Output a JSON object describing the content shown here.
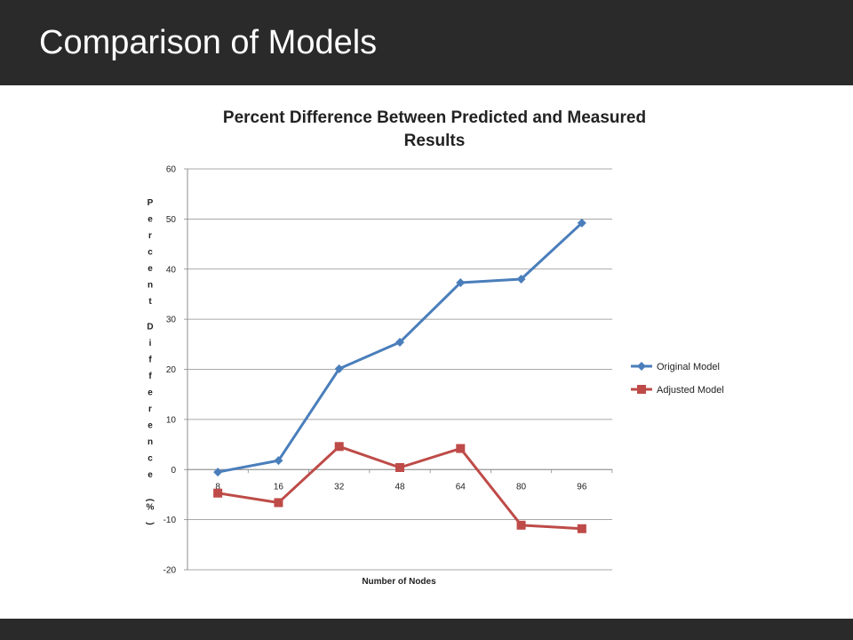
{
  "slide": {
    "title": "Comparison of Models"
  },
  "colors": {
    "header_bg": "#2a2a2a",
    "footer_bg": "#2a2a2a",
    "original": "#4a7ebb",
    "adjusted": "#be4b48"
  },
  "chart_data": {
    "type": "line",
    "title_lines": [
      "Percent Difference Between Predicted and Measured",
      "Results"
    ],
    "xlabel": "Number of Nodes",
    "ylabel": "Percent Difference (%)",
    "categories": [
      "8",
      "16",
      "32",
      "48",
      "64",
      "80",
      "96"
    ],
    "ylim": [
      -20,
      60
    ],
    "yticks": [
      -20,
      -10,
      0,
      10,
      20,
      30,
      40,
      50,
      60
    ],
    "grid": true,
    "legend": "right",
    "series": [
      {
        "name": "Original Model",
        "marker": "diamond",
        "color": "#4a7ebb",
        "values": [
          -0.5,
          1.8,
          20.1,
          25.4,
          37.3,
          38.0,
          49.2
        ]
      },
      {
        "name": "Adjusted Model",
        "marker": "square",
        "color": "#be4b48",
        "values": [
          -4.7,
          -6.6,
          4.6,
          0.4,
          4.2,
          -11.1,
          -11.8
        ]
      }
    ]
  }
}
